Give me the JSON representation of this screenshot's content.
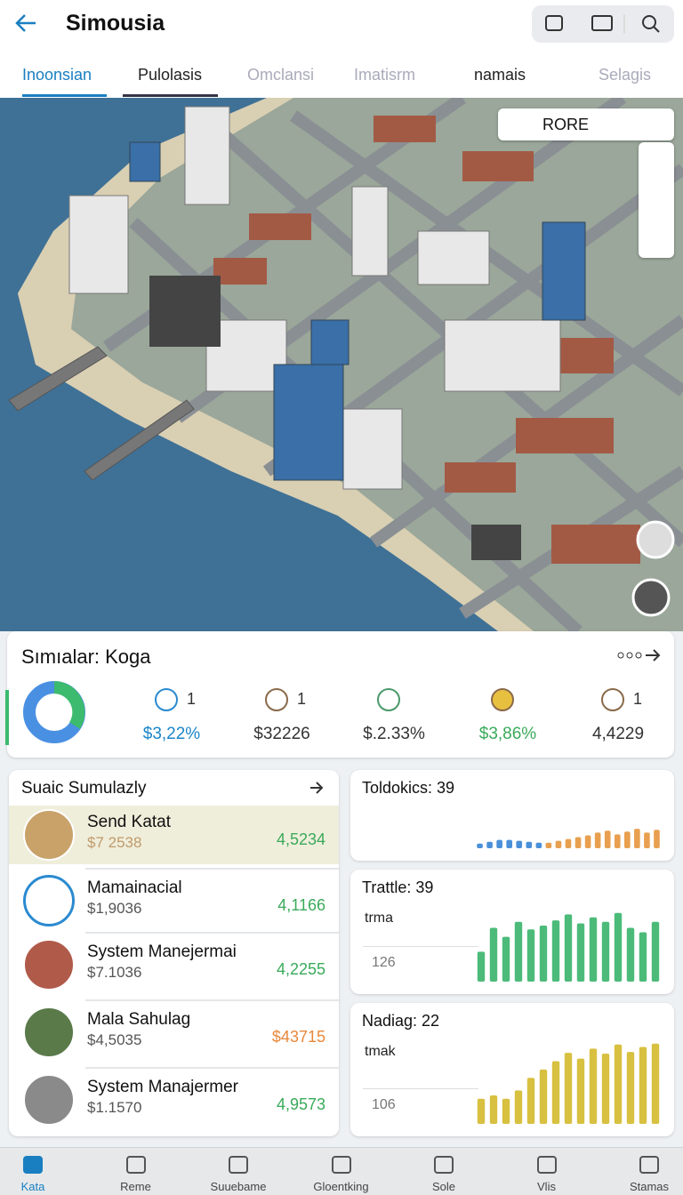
{
  "header": {
    "title": "Simousia"
  },
  "tabs": {
    "items": [
      "Inoonsian",
      "Pulolasis",
      "Omclansi",
      "Imatisrm",
      "namais",
      "Selagis"
    ],
    "active": 0
  },
  "map": {
    "control_label": "RORE"
  },
  "summary": {
    "title": "Sımıalar: Koga",
    "stats": [
      {
        "badge": "1",
        "value": "$3,22%",
        "color": "#1a86c8"
      },
      {
        "badge": "1",
        "value": "$32226",
        "color": "#333333"
      },
      {
        "value": "$.2.33%",
        "color": "#333333"
      },
      {
        "value": "$3,86%",
        "color": "#3aaa5a"
      },
      {
        "badge": "1",
        "value": "4,4229",
        "color": "#333333"
      }
    ]
  },
  "list": {
    "title": "Suaic Sumulazly",
    "items": [
      {
        "name": "Send Katat",
        "price": "$7 2538",
        "amount": "4,5234",
        "color": "#3aaa5a"
      },
      {
        "name": "Mamainacial",
        "price": "$1,9036",
        "amount": "4,1166",
        "color": "#3aaa5a"
      },
      {
        "name": "System Manejermai",
        "price": "$7.1036",
        "amount": "4,2255",
        "color": "#3aaa5a"
      },
      {
        "name": "Mala Sahulag",
        "price": "$4,5035",
        "amount": "$43715",
        "color": "#e8883a"
      },
      {
        "name": "System Manajermer",
        "price": "$1.1570",
        "amount": "4,9573",
        "color": "#3aaa5a"
      }
    ]
  },
  "mini_charts": [
    {
      "title": "Toldokics: 39",
      "series": [
        {
          "color": "#4a90d9",
          "values": [
            10,
            14,
            18,
            18,
            16,
            14,
            12
          ]
        },
        {
          "color": "#e8a050",
          "values": [
            12,
            16,
            20,
            24,
            28,
            34,
            38,
            30,
            36,
            42,
            34,
            40
          ]
        }
      ]
    },
    {
      "title": "Trattle: 39",
      "label": "trma",
      "sublabel": "126",
      "series": [
        {
          "color": "#4cbb7a",
          "values": [
            40,
            72,
            60,
            80,
            70,
            75,
            82,
            90,
            78,
            86,
            80,
            92,
            72,
            66,
            80
          ]
        }
      ]
    },
    {
      "title": "Nadiag: 22",
      "label": "tmak",
      "sublabel": "106",
      "series": [
        {
          "color": "#d8c040",
          "values": [
            30,
            34,
            30,
            40,
            55,
            65,
            75,
            85,
            78,
            90,
            84,
            95,
            86,
            92,
            96
          ]
        }
      ]
    }
  ],
  "nav": {
    "items": [
      "Kata",
      "Reme",
      "Suuebame",
      "Gloentking",
      "Sole",
      "Vlis",
      "Stamas"
    ],
    "active": 0
  }
}
